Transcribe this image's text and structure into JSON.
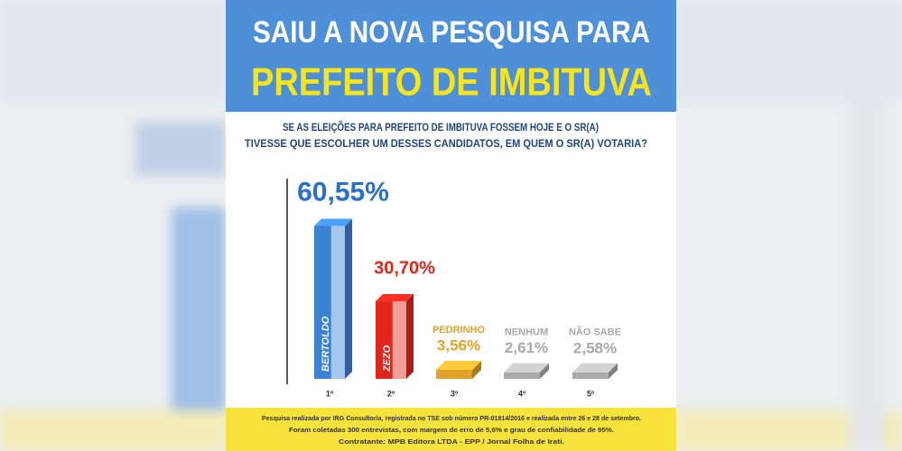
{
  "chart_data": {
    "type": "bar",
    "title": "SAIU A NOVA PESQUISA PARA",
    "subtitle": "PREFEITO DE IMBITUVA",
    "question": [
      "SE AS ELEIÇÕES PARA PREFEITO DE IMBITUVA FOSSEM HOJE E O SR(A)",
      "TIVESSE QUE ESCOLHER UM DESSES CANDIDATOS, EM QUEM O SR(A) VOTARIA?"
    ],
    "categories": [
      "1º",
      "2º",
      "3º",
      "4º",
      "5º"
    ],
    "candidates": [
      "BERTOLDO",
      "ZEZO",
      "PEDRINHO",
      "NENHUM",
      "NÃO SABE"
    ],
    "values": [
      60.55,
      30.7,
      3.56,
      2.61,
      2.58
    ],
    "value_labels": [
      "60,55%",
      "30,70%",
      "3,56%",
      "2,61%",
      "2,58%"
    ],
    "colors": [
      "#3b82d6",
      "#e0261c",
      "#e3a22c",
      "#a9a9a9",
      "#a9a9a9"
    ],
    "footer": [
      "Pesquisa realizada por IRG Consultoria, registrada no TSE sob número PR-01814/2016 e realizada entre 26 e 28 de setembro.",
      "Foram coletadas 300 entrevistas, com margem de erro de 5,6% e grau de confiabilidade de 95%.",
      "Contratante: MPB Editora LTDA - EPP / Jornal Folha de Irati."
    ]
  }
}
